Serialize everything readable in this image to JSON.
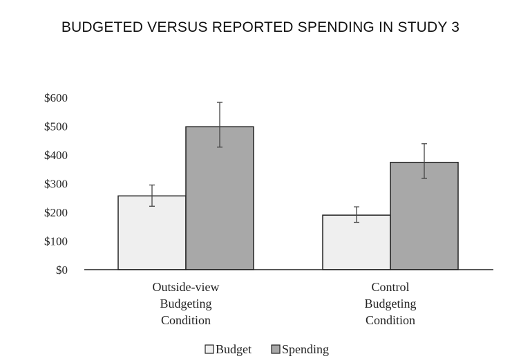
{
  "chart_data": {
    "type": "bar",
    "title": "BUDGETED VERSUS REPORTED SPENDING IN STUDY 3",
    "categories": [
      [
        "Outside-view",
        "Budgeting",
        "Condition"
      ],
      [
        "Control",
        "Budgeting",
        "Condition"
      ]
    ],
    "series": [
      {
        "name": "Budget",
        "color": "#efefef",
        "values": [
          257,
          190
        ],
        "error_low": [
          221,
          165
        ],
        "error_high": [
          295,
          219
        ]
      },
      {
        "name": "Spending",
        "color": "#a8a8a8",
        "values": [
          498,
          374
        ],
        "error_low": [
          427,
          318
        ],
        "error_high": [
          583,
          439
        ]
      }
    ],
    "yticks": [
      "$0",
      "$100",
      "$200",
      "$300",
      "$400",
      "$500",
      "$600"
    ],
    "ylim": [
      0,
      600
    ],
    "legend_position": "bottom-center",
    "grid": false
  }
}
